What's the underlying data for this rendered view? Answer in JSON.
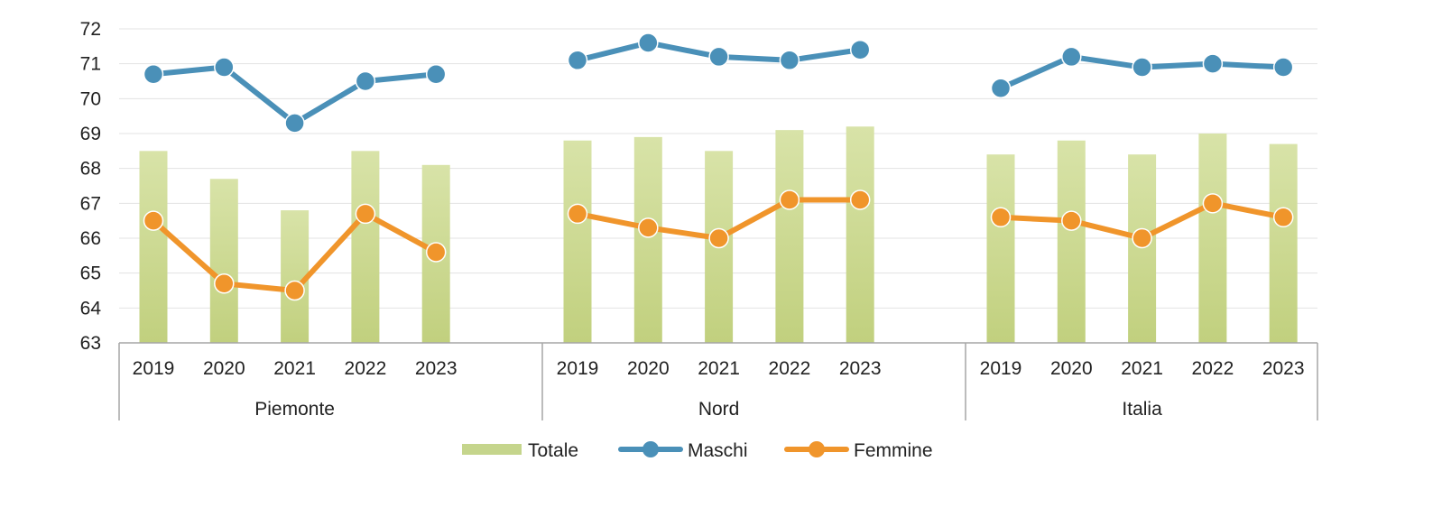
{
  "chart_data": {
    "type": "bar",
    "title": "",
    "xlabel": "",
    "ylabel": "",
    "ylim": [
      63,
      72
    ],
    "yticks": [
      63,
      64,
      65,
      66,
      67,
      68,
      69,
      70,
      71,
      72
    ],
    "grid": true,
    "legend_position": "bottom-center",
    "groups": [
      {
        "name": "Piemonte",
        "years": [
          "2019",
          "2020",
          "2021",
          "2022",
          "2023"
        ]
      },
      {
        "name": "Nord",
        "years": [
          "2019",
          "2020",
          "2021",
          "2022",
          "2023"
        ]
      },
      {
        "name": "Italia",
        "years": [
          "2019",
          "2020",
          "2021",
          "2022",
          "2023"
        ]
      }
    ],
    "series": [
      {
        "name": "Totale",
        "kind": "bar",
        "color": "#c5d58c",
        "values": [
          68.5,
          67.7,
          66.8,
          68.5,
          68.1,
          68.8,
          68.9,
          68.5,
          69.1,
          69.2,
          68.4,
          68.8,
          68.4,
          69.0,
          68.7
        ]
      },
      {
        "name": "Maschi",
        "kind": "line",
        "color": "#4a90b8",
        "values": [
          70.7,
          70.9,
          69.3,
          70.5,
          70.7,
          71.1,
          71.6,
          71.2,
          71.1,
          71.4,
          70.3,
          71.2,
          70.9,
          71.0,
          70.9
        ]
      },
      {
        "name": "Femmine",
        "kind": "line",
        "color": "#f0952b",
        "values": [
          66.5,
          64.7,
          64.5,
          66.7,
          65.6,
          66.7,
          66.3,
          66.0,
          67.1,
          67.1,
          66.6,
          66.5,
          66.0,
          67.0,
          66.6
        ]
      }
    ]
  }
}
